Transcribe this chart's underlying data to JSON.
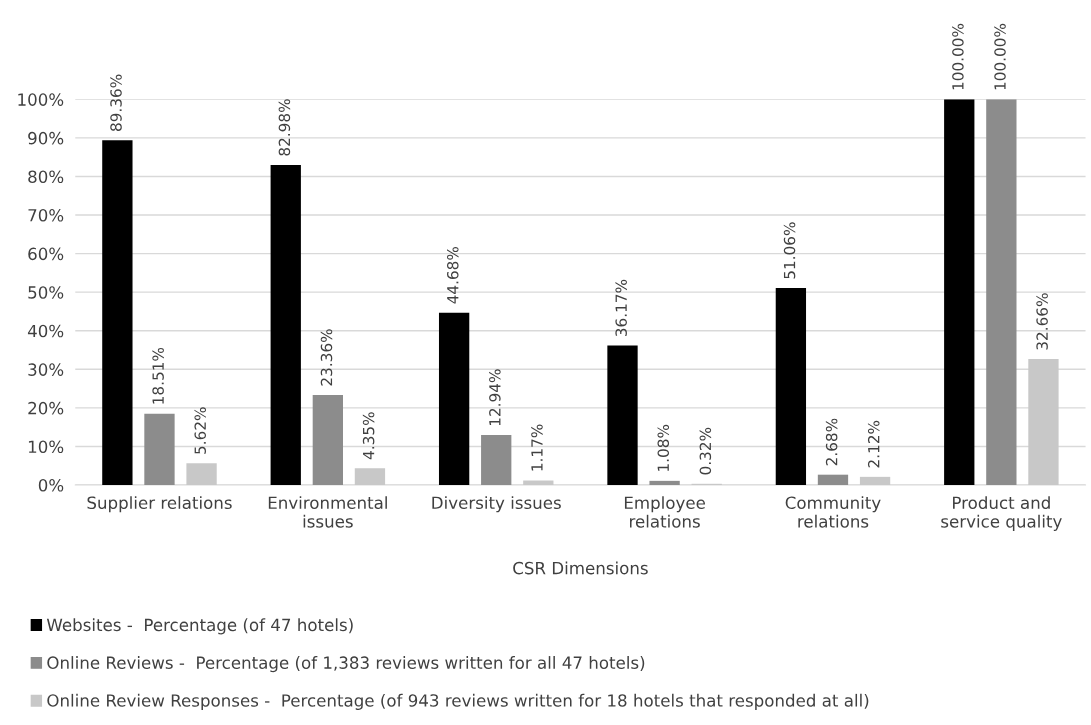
{
  "chart_data": {
    "type": "bar",
    "xlabel": "CSR Dimensions",
    "categories": [
      "Supplier relations",
      "Environmental\nissues",
      "Diversity issues",
      "Employee\nrelations",
      "Community\nrelations",
      "Product and\nservice quality"
    ],
    "series": [
      {
        "name": "Websites -  Percentage (of 47 hotels)",
        "color": "#000000",
        "values": [
          89.36,
          82.98,
          44.68,
          36.17,
          51.06,
          100.0
        ],
        "value_labels": [
          "89.36%",
          "82.98%",
          "44.68%",
          "36.17%",
          "51.06%",
          "100.00%"
        ]
      },
      {
        "name": "Online Reviews -  Percentage (of 1,383 reviews written for all 47 hotels)",
        "color": "#8c8c8c",
        "values": [
          18.51,
          23.36,
          12.94,
          1.08,
          2.68,
          100.0
        ],
        "value_labels": [
          "18.51%",
          "23.36%",
          "12.94%",
          "1.08%",
          "2.68%",
          "100.00%"
        ]
      },
      {
        "name": "Online Review Responses -  Percentage (of 943 reviews written for 18 hotels that responded at all)",
        "color": "#c8c8c8",
        "values": [
          5.62,
          4.35,
          1.17,
          0.32,
          2.12,
          32.66
        ],
        "value_labels": [
          "5.62%",
          "4.35%",
          "1.17%",
          "0.32%",
          "2.12%",
          "32.66%"
        ]
      }
    ],
    "ylim": [
      0,
      100
    ],
    "yticks": [
      {
        "value": 0,
        "label": "0%"
      },
      {
        "value": 10,
        "label": "10%"
      },
      {
        "value": 20,
        "label": "20%"
      },
      {
        "value": 30,
        "label": "30%"
      },
      {
        "value": 40,
        "label": "40%"
      },
      {
        "value": 50,
        "label": "50%"
      },
      {
        "value": 60,
        "label": "60%"
      },
      {
        "value": 70,
        "label": "70%"
      },
      {
        "value": 80,
        "label": "80%"
      },
      {
        "value": 90,
        "label": "90%"
      },
      {
        "value": 100,
        "label": "100%"
      }
    ],
    "grid": "y",
    "legend": "bottom"
  }
}
